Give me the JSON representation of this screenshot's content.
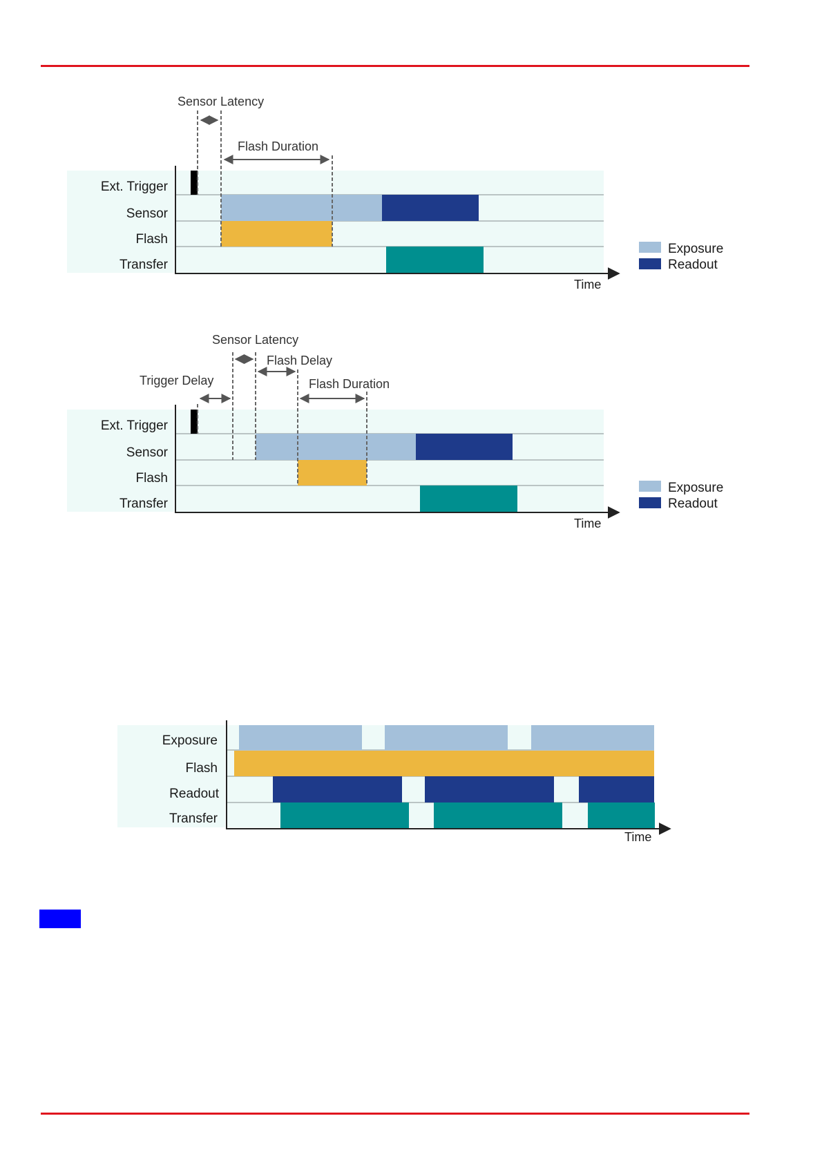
{
  "page": {
    "rule_color": "#e0141e",
    "marker_color": "#0000ff"
  },
  "colors": {
    "band": "#eefaf8",
    "exposure": "#a4c0da",
    "readout": "#1e3a8a",
    "flash": "#edb73f",
    "transfer": "#008f8f",
    "trigger": "#000000",
    "axis": "#333333",
    "grid": "#9aa5a5",
    "annotation": "#555555",
    "text": "#1a1a1a"
  },
  "diagram1": {
    "rows": [
      "Ext. Trigger",
      "Sensor",
      "Flash",
      "Transfer"
    ],
    "annotations": {
      "sensor_latency": "Sensor Latency",
      "flash_duration": "Flash Duration"
    },
    "time_label": "Time",
    "legend": [
      {
        "label": "Exposure",
        "color_key": "exposure"
      },
      {
        "label": "Readout",
        "color_key": "readout"
      }
    ]
  },
  "diagram2": {
    "rows": [
      "Ext. Trigger",
      "Sensor",
      "Flash",
      "Transfer"
    ],
    "annotations": {
      "sensor_latency": "Sensor Latency",
      "flash_delay": "Flash Delay",
      "trigger_delay": "Trigger Delay",
      "flash_duration": "Flash Duration"
    },
    "time_label": "Time",
    "legend": [
      {
        "label": "Exposure",
        "color_key": "exposure"
      },
      {
        "label": "Readout",
        "color_key": "readout"
      }
    ]
  },
  "diagram3": {
    "rows": [
      "Exposure",
      "Flash",
      "Readout",
      "Transfer"
    ],
    "time_label": "Time"
  }
}
